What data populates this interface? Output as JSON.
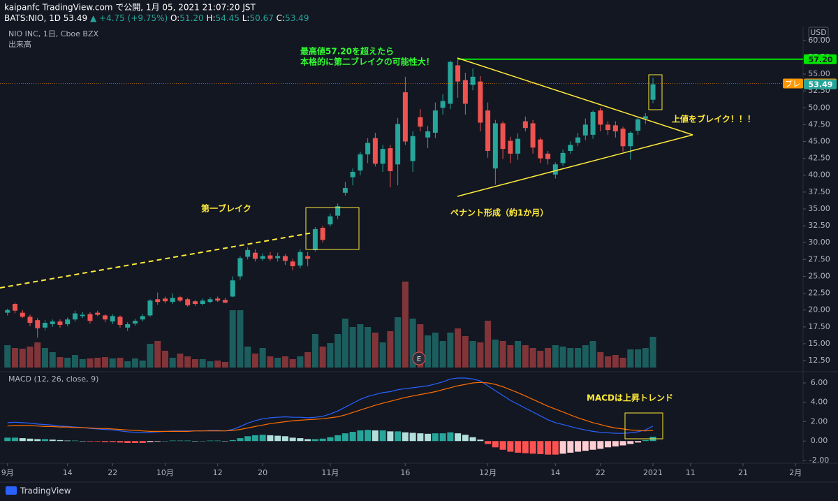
{
  "header": {
    "publisher": "kaipanfc TradingView.com で公開, 1月 05, 2021 21:07:20 JST",
    "symbol": "BATS:NIO, 1D",
    "price": "53.49",
    "arrow": "▲",
    "change": "+4.75 (+9.75%)",
    "o_label": "O:",
    "o": "51.20",
    "h_label": "H:",
    "h": "54.45",
    "l_label": "L:",
    "l": "50.67",
    "c_label": "C:",
    "c": "53.49"
  },
  "annotations": {
    "target_note": [
      "最高値57.20を超えたら",
      "本格的に第二ブレイクの可能性大！"
    ],
    "first_break": "第一ブレイク",
    "pennant": "ペナント形成（約1か月）",
    "breakout": "上値をブレイク！！！",
    "macd_note": "MACDは上昇トレンド"
  },
  "footer": "TradingView",
  "chart_data": [
    {
      "type": "candlestick",
      "title": "NIO INC, 1日, Cboe BZX",
      "volume_label": "出来高",
      "y_unit": "USD",
      "earnings_label": "E",
      "up_color": "#26a69a",
      "down_color": "#ef5350",
      "grid": false,
      "ylim": [
        10.85,
        62.05
      ],
      "yticks": [
        {
          "value": 12.5,
          "label": "12.50"
        },
        {
          "value": 15,
          "label": "15.00"
        },
        {
          "value": 17.5,
          "label": "17.50"
        },
        {
          "value": 20,
          "label": "20.00"
        },
        {
          "value": 22.5,
          "label": "22.50"
        },
        {
          "value": 25,
          "label": "25.00"
        },
        {
          "value": 27.5,
          "label": "27.50"
        },
        {
          "value": 30,
          "label": "30.00"
        },
        {
          "value": 32.5,
          "label": "32.50"
        },
        {
          "value": 35,
          "label": "35.00"
        },
        {
          "value": 37.5,
          "label": "37.50"
        },
        {
          "value": 40,
          "label": "40.00"
        },
        {
          "value": 42.5,
          "label": "42.50"
        },
        {
          "value": 45,
          "label": "45.00"
        },
        {
          "value": 47.5,
          "label": "47.50"
        },
        {
          "value": 50,
          "label": "50.00"
        },
        {
          "value": 52.5,
          "label": "52.50"
        },
        {
          "value": 55,
          "label": "55.00"
        },
        {
          "value": 57.5,
          "label": "57.50"
        },
        {
          "value": 60,
          "label": "60.00"
        }
      ],
      "price_tags": [
        {
          "value": 57.2,
          "label": "57.20",
          "color": "#00e600",
          "text_color": "#131722",
          "line": "solid"
        },
        {
          "name": "ブレ",
          "value": 53.6,
          "label": "53.60",
          "color": "#ff9800",
          "text_color": "#ffffff",
          "line": "dotted"
        },
        {
          "value": 53.49,
          "label": "53.49",
          "color": "#26a69a",
          "text_color": "#ffffff"
        }
      ],
      "ohlc": [
        [
          19.6,
          20.2,
          19.2,
          20.0
        ],
        [
          20.9,
          21.1,
          19.5,
          19.9
        ],
        [
          19.6,
          20.0,
          18.8,
          19.0
        ],
        [
          19.0,
          19.3,
          17.6,
          18.1
        ],
        [
          18.5,
          18.8,
          15.9,
          17.3
        ],
        [
          17.4,
          18.5,
          17.0,
          18.1
        ],
        [
          17.9,
          18.6,
          17.5,
          18.3
        ],
        [
          18.3,
          18.6,
          17.4,
          17.8
        ],
        [
          17.9,
          18.9,
          17.6,
          18.6
        ],
        [
          18.6,
          19.9,
          18.3,
          19.5
        ],
        [
          19.1,
          19.7,
          18.8,
          19.3
        ],
        [
          19.4,
          19.7,
          18.0,
          18.4
        ],
        [
          19.6,
          19.9,
          19.1,
          19.3
        ],
        [
          19.2,
          19.4,
          18.2,
          18.6
        ],
        [
          18.3,
          19.4,
          17.9,
          19.1
        ],
        [
          19.0,
          19.2,
          17.4,
          17.8
        ],
        [
          17.4,
          18.2,
          16.9,
          17.9
        ],
        [
          18.0,
          18.7,
          17.7,
          18.4
        ],
        [
          18.6,
          19.4,
          18.3,
          19.1
        ],
        [
          19.2,
          21.6,
          19.0,
          21.4
        ],
        [
          21.6,
          22.6,
          20.8,
          21.2
        ],
        [
          21.7,
          22.0,
          21.0,
          21.3
        ],
        [
          21.2,
          22.5,
          20.9,
          21.8
        ],
        [
          21.9,
          22.1,
          21.2,
          21.4
        ],
        [
          21.6,
          21.8,
          20.5,
          20.7
        ],
        [
          21.3,
          21.5,
          20.6,
          20.9
        ],
        [
          20.9,
          21.7,
          20.7,
          21.4
        ],
        [
          21.2,
          21.9,
          21.0,
          21.6
        ],
        [
          21.7,
          22.0,
          21.2,
          21.4
        ],
        [
          21.5,
          21.8,
          21.0,
          21.1
        ],
        [
          22.0,
          25.0,
          21.9,
          24.4
        ],
        [
          25.0,
          28.0,
          24.5,
          27.7
        ],
        [
          27.9,
          29.3,
          27.5,
          28.9
        ],
        [
          28.5,
          29.0,
          27.2,
          27.6
        ],
        [
          27.6,
          28.4,
          27.3,
          28.0
        ],
        [
          28.1,
          28.6,
          27.3,
          27.6
        ],
        [
          27.7,
          28.5,
          27.2,
          28.0
        ],
        [
          28.0,
          28.3,
          26.7,
          27.3
        ],
        [
          27.2,
          27.6,
          25.9,
          26.5
        ],
        [
          26.6,
          29.0,
          26.2,
          28.6
        ],
        [
          28.0,
          28.6,
          26.5,
          27.6
        ],
        [
          28.9,
          32.3,
          28.7,
          32.0
        ],
        [
          32.2,
          32.5,
          30.0,
          30.4
        ],
        [
          32.7,
          34.3,
          32.4,
          33.9
        ],
        [
          34.0,
          35.8,
          33.5,
          35.4
        ],
        [
          37.4,
          39.0,
          37.0,
          38.1
        ],
        [
          39.7,
          41.0,
          38.5,
          40.5
        ],
        [
          40.7,
          43.5,
          40.0,
          43.1
        ],
        [
          43.1,
          45.5,
          41.8,
          44.8
        ],
        [
          45.5,
          46.3,
          41.3,
          41.7
        ],
        [
          41.7,
          44.5,
          40.5,
          43.9
        ],
        [
          44.0,
          44.5,
          38.2,
          40.6
        ],
        [
          41.6,
          48.5,
          38.5,
          47.6
        ],
        [
          52.3,
          54.6,
          44.5,
          45.0
        ],
        [
          42.1,
          46.5,
          40.5,
          45.8
        ],
        [
          48.6,
          49.8,
          46.5,
          47.2
        ],
        [
          45.6,
          47.3,
          44.0,
          46.5
        ],
        [
          46.3,
          50.8,
          45.5,
          49.6
        ],
        [
          50.0,
          52.0,
          49.0,
          51.0
        ],
        [
          50.6,
          57.0,
          49.8,
          56.8
        ],
        [
          56.3,
          57.2,
          51.5,
          53.9
        ],
        [
          54.1,
          55.2,
          49.0,
          50.6
        ],
        [
          53.4,
          55.8,
          52.6,
          54.6
        ],
        [
          53.9,
          54.7,
          46.5,
          47.8
        ],
        [
          49.6,
          50.8,
          42.6,
          43.6
        ],
        [
          41.0,
          48.2,
          38.6,
          47.7
        ],
        [
          47.7,
          48.0,
          42.4,
          43.9
        ],
        [
          45.1,
          45.7,
          41.8,
          43.2
        ],
        [
          43.2,
          46.2,
          42.3,
          45.4
        ],
        [
          48.0,
          48.7,
          46.5,
          47.0
        ],
        [
          47.7,
          48.2,
          43.2,
          44.1
        ],
        [
          45.3,
          45.6,
          41.8,
          42.5
        ],
        [
          43.2,
          43.6,
          41.6,
          42.4
        ],
        [
          40.1,
          41.9,
          39.5,
          41.6
        ],
        [
          41.8,
          43.8,
          41.4,
          43.3
        ],
        [
          43.6,
          45.0,
          43.2,
          44.5
        ],
        [
          44.8,
          46.3,
          44.3,
          45.6
        ],
        [
          45.9,
          48.4,
          45.2,
          47.5
        ],
        [
          46.0,
          49.6,
          45.4,
          49.4
        ],
        [
          49.6,
          50.0,
          46.5,
          47.5
        ],
        [
          47.5,
          48.0,
          46.0,
          46.7
        ],
        [
          47.4,
          48.0,
          45.6,
          46.5
        ],
        [
          46.9,
          47.2,
          43.5,
          44.3
        ],
        [
          44.3,
          46.5,
          42.3,
          46.3
        ],
        [
          46.6,
          48.6,
          46.0,
          48.3
        ],
        [
          48.4,
          49.2,
          47.6,
          48.74
        ],
        [
          51.2,
          54.45,
          50.67,
          53.49
        ]
      ],
      "volume_ylim": [
        0,
        300
      ],
      "volume": [
        64,
        56,
        54,
        60,
        72,
        56,
        44,
        30,
        28,
        36,
        24,
        26,
        28,
        30,
        26,
        28,
        18,
        26,
        20,
        68,
        76,
        48,
        28,
        40,
        32,
        24,
        24,
        18,
        20,
        16,
        164,
        164,
        60,
        40,
        56,
        32,
        28,
        32,
        24,
        32,
        44,
        96,
        60,
        70,
        96,
        140,
        116,
        124,
        116,
        100,
        72,
        104,
        144,
        246,
        140,
        124,
        92,
        100,
        76,
        100,
        112,
        90,
        76,
        72,
        134,
        80,
        76,
        64,
        76,
        64,
        56,
        48,
        56,
        64,
        60,
        56,
        56,
        64,
        76,
        44,
        32,
        36,
        28,
        52,
        52,
        56,
        88
      ]
    },
    {
      "type": "macd",
      "title": "MACD (12, 26, close, 9)",
      "xlim": [
        -1,
        106
      ],
      "xticks": [
        {
          "value": 0,
          "label": "9月"
        },
        {
          "value": 8,
          "label": "14"
        },
        {
          "value": 14,
          "label": "22"
        },
        {
          "value": 21,
          "label": "10月"
        },
        {
          "value": 28,
          "label": "12"
        },
        {
          "value": 34,
          "label": "20"
        },
        {
          "value": 43,
          "label": "11月"
        },
        {
          "value": 53,
          "label": "16"
        },
        {
          "value": 64,
          "label": "12月"
        },
        {
          "value": 73,
          "label": "14"
        },
        {
          "value": 79,
          "label": "22"
        },
        {
          "value": 86,
          "label": "2021"
        },
        {
          "value": 91,
          "label": "11"
        },
        {
          "value": 98,
          "label": "21"
        },
        {
          "value": 105,
          "label": "2月"
        }
      ],
      "ylim": [
        -2.29,
        7.08
      ],
      "yticks": [
        {
          "value": 6,
          "label": "6.00"
        },
        {
          "value": 4,
          "label": "4.00"
        },
        {
          "value": 2,
          "label": "2.00"
        },
        {
          "value": 0,
          "label": "0.00"
        },
        {
          "value": -2,
          "label": "-2.00"
        }
      ],
      "histogram_colors": [
        "#26a69a",
        "#b2dfdb",
        "#ffcdd2",
        "#ff5252"
      ],
      "histogram": [
        0.35,
        0.35,
        0.3,
        0.25,
        0.2,
        0.2,
        0.15,
        0.1,
        0.05,
        0.05,
        0.0,
        -0.05,
        -0.05,
        -0.1,
        -0.1,
        -0.15,
        -0.2,
        -0.2,
        -0.2,
        -0.1,
        -0.05,
        0.0,
        0.05,
        0.05,
        0.05,
        0.0,
        0.0,
        0.05,
        0.05,
        0.0,
        0.1,
        0.3,
        0.5,
        0.6,
        0.65,
        0.6,
        0.55,
        0.5,
        0.35,
        0.3,
        0.2,
        0.2,
        0.25,
        0.4,
        0.6,
        0.8,
        0.95,
        1.1,
        1.15,
        1.1,
        1.1,
        1.0,
        1.0,
        0.9,
        0.85,
        0.8,
        0.75,
        0.8,
        0.8,
        0.9,
        0.8,
        0.65,
        0.4,
        0.15,
        -0.3,
        -0.65,
        -0.9,
        -1.1,
        -1.2,
        -1.25,
        -1.3,
        -1.35,
        -1.4,
        -1.4,
        -1.3,
        -1.2,
        -1.1,
        -1.0,
        -0.9,
        -0.8,
        -0.65,
        -0.55,
        -0.45,
        -0.3,
        -0.15,
        0.1,
        0.45
      ],
      "lines": [
        {
          "color": "#2962ff",
          "values": [
            1.9,
            1.95,
            1.9,
            1.85,
            1.75,
            1.7,
            1.65,
            1.55,
            1.5,
            1.45,
            1.4,
            1.3,
            1.25,
            1.2,
            1.15,
            1.05,
            0.95,
            0.9,
            0.85,
            0.9,
            0.95,
            1.0,
            1.05,
            1.05,
            1.05,
            1.05,
            1.05,
            1.1,
            1.1,
            1.05,
            1.2,
            1.5,
            1.85,
            2.1,
            2.3,
            2.4,
            2.45,
            2.5,
            2.45,
            2.45,
            2.4,
            2.45,
            2.55,
            2.8,
            3.1,
            3.5,
            3.9,
            4.3,
            4.6,
            4.8,
            5.0,
            5.1,
            5.3,
            5.4,
            5.5,
            5.6,
            5.7,
            5.9,
            6.1,
            6.4,
            6.5,
            6.5,
            6.4,
            6.2,
            5.7,
            5.2,
            4.7,
            4.2,
            3.8,
            3.4,
            3.0,
            2.6,
            2.2,
            1.9,
            1.7,
            1.5,
            1.3,
            1.15,
            1.0,
            0.9,
            0.85,
            0.8,
            0.8,
            0.85,
            0.95,
            1.15,
            1.55
          ]
        },
        {
          "color": "#ff6d00",
          "values": [
            1.55,
            1.6,
            1.6,
            1.6,
            1.55,
            1.5,
            1.5,
            1.45,
            1.45,
            1.4,
            1.4,
            1.35,
            1.3,
            1.3,
            1.25,
            1.2,
            1.15,
            1.1,
            1.05,
            1.0,
            1.0,
            1.0,
            1.0,
            1.0,
            1.0,
            1.05,
            1.05,
            1.05,
            1.05,
            1.05,
            1.1,
            1.2,
            1.35,
            1.5,
            1.65,
            1.8,
            1.9,
            2.0,
            2.1,
            2.15,
            2.2,
            2.25,
            2.3,
            2.4,
            2.5,
            2.7,
            2.95,
            3.2,
            3.45,
            3.7,
            3.9,
            4.1,
            4.3,
            4.5,
            4.65,
            4.8,
            4.95,
            5.1,
            5.3,
            5.5,
            5.7,
            5.85,
            6.0,
            6.05,
            6.0,
            5.85,
            5.6,
            5.3,
            5.0,
            4.65,
            4.3,
            3.95,
            3.6,
            3.3,
            3.0,
            2.7,
            2.4,
            2.15,
            1.9,
            1.7,
            1.5,
            1.35,
            1.25,
            1.15,
            1.1,
            1.05,
            1.1
          ]
        }
      ]
    }
  ]
}
